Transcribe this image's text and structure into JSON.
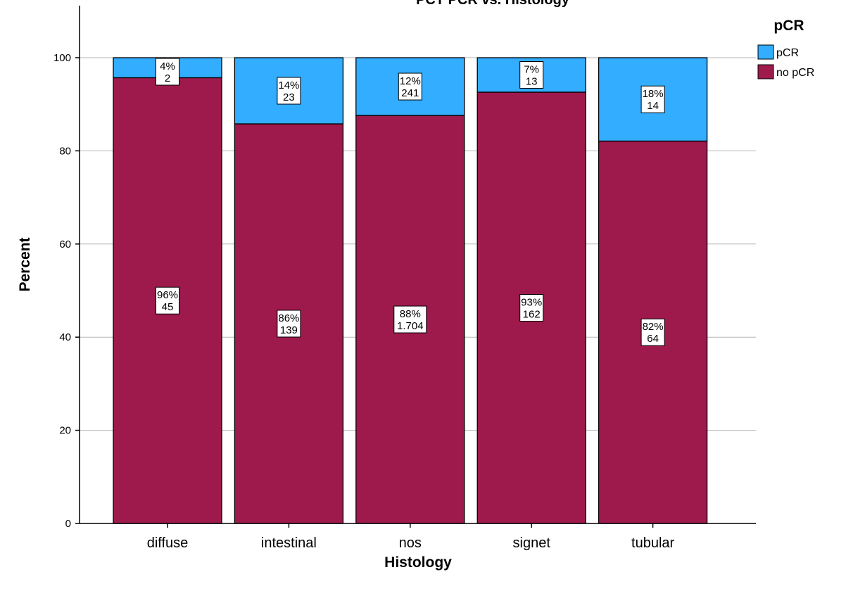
{
  "chart_data": {
    "type": "bar",
    "stacked": true,
    "title": "PCT PCR vs. Histology",
    "xlabel": "Histology",
    "ylabel": "Percent",
    "ylim": [
      0,
      110
    ],
    "yticks": [
      0,
      20,
      40,
      60,
      80,
      100
    ],
    "grid": true,
    "legend_position": "top-right",
    "legend_title": "pCR",
    "categories": [
      "diffuse",
      "intestinal",
      "nos",
      "signet",
      "tubular"
    ],
    "series": [
      {
        "name": "no pCR",
        "color": "#9e1a4c",
        "values": [
          95.7,
          85.8,
          87.6,
          92.6,
          82.1
        ],
        "labels": [
          [
            "96%",
            "45"
          ],
          [
            "86%",
            "139"
          ],
          [
            "88%",
            "1.704"
          ],
          [
            "93%",
            "162"
          ],
          [
            "82%",
            "64"
          ]
        ]
      },
      {
        "name": "pCR",
        "color": "#33adff",
        "values": [
          4.3,
          14.2,
          12.4,
          7.4,
          17.9
        ],
        "labels": [
          [
            "4%",
            "2"
          ],
          [
            "14%",
            "23"
          ],
          [
            "12%",
            "241"
          ],
          [
            "7%",
            "13"
          ],
          [
            "18%",
            "14"
          ]
        ]
      }
    ]
  }
}
